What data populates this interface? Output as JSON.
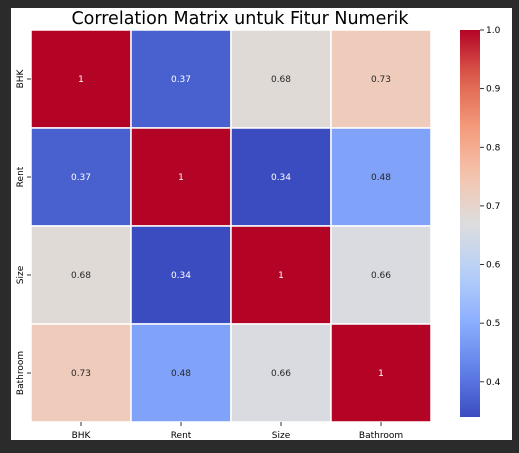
{
  "chart_data": {
    "type": "heatmap",
    "title": "Correlation Matrix untuk Fitur Numerik",
    "xlabel": "",
    "ylabel": "",
    "x_categories": [
      "BHK",
      "Rent",
      "Size",
      "Bathroom"
    ],
    "y_categories": [
      "BHK",
      "Rent",
      "Size",
      "Bathroom"
    ],
    "values": [
      [
        1,
        0.37,
        0.68,
        0.73
      ],
      [
        0.37,
        1,
        0.34,
        0.48
      ],
      [
        0.68,
        0.34,
        1,
        0.66
      ],
      [
        0.73,
        0.48,
        0.66,
        1
      ]
    ],
    "annotations": [
      [
        "1",
        "0.37",
        "0.68",
        "0.73"
      ],
      [
        "0.37",
        "1",
        "0.34",
        "0.48"
      ],
      [
        "0.68",
        "0.34",
        "1",
        "0.66"
      ],
      [
        "0.73",
        "0.48",
        "0.66",
        "1"
      ]
    ],
    "colormap": "coolwarm",
    "colorbar": {
      "min": 0.34,
      "max": 1.0,
      "ticks": [
        0.4,
        0.5,
        0.6,
        0.7,
        0.8,
        0.9,
        1.0
      ],
      "tick_labels": [
        "0.4",
        "0.5",
        "0.6",
        "0.7",
        "0.8",
        "0.9",
        "1.0"
      ],
      "placement": "right"
    },
    "cell_border_color": "#ffffff"
  }
}
